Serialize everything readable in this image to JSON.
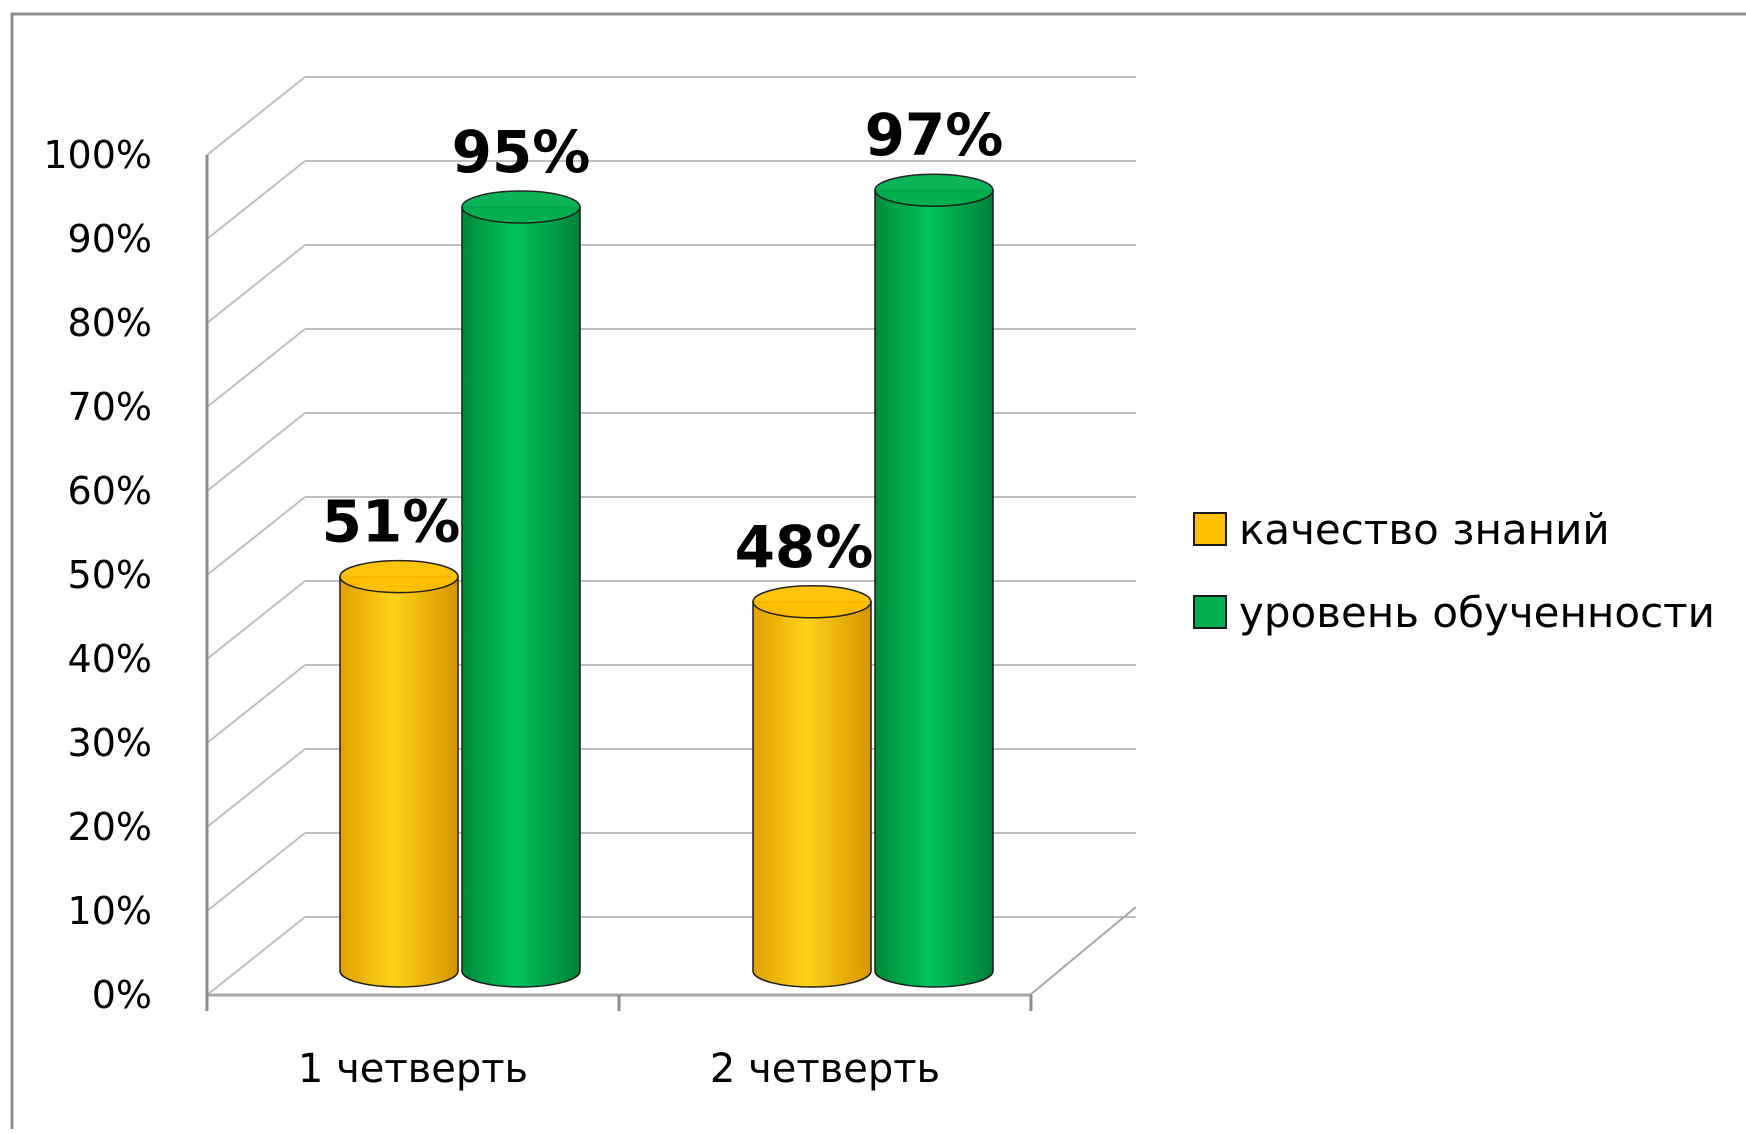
{
  "chart_data": {
    "type": "bar",
    "style": "3d-cylinder",
    "title": "",
    "xlabel": "",
    "ylabel": "",
    "ylim": [
      0,
      100
    ],
    "ytick_step": 10,
    "ytick_suffix": "%",
    "grid": true,
    "legend": "right",
    "categories": [
      "1 четверть",
      "2  четверть"
    ],
    "series": [
      {
        "name": "качество знаний",
        "values": [
          51,
          48
        ],
        "labels": [
          "51%",
          "48%"
        ],
        "color": "#FFC000"
      },
      {
        "name": "уровень обученности",
        "values": [
          95,
          97
        ],
        "labels": [
          "95%",
          "97%"
        ],
        "color": "#00B050"
      }
    ]
  }
}
